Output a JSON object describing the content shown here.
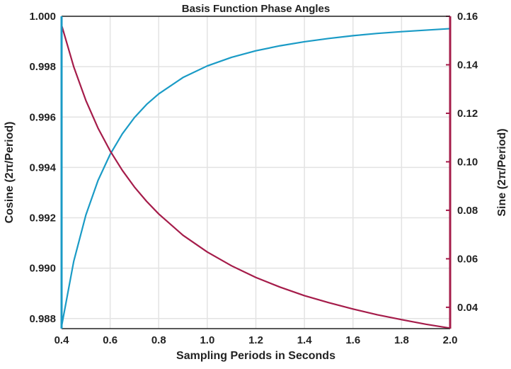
{
  "chart_data": {
    "type": "line",
    "title": "Basis Function Phase Angles",
    "xlabel": "Sampling Periods in Seconds",
    "ylabel_left": "Cosine (2π/Period)",
    "ylabel_right": "Sine (2π/Period)",
    "xlim": [
      0.4,
      2.0
    ],
    "ylim_left": [
      0.9876,
      1.0
    ],
    "ylim_right": [
      0.0312,
      0.16
    ],
    "x_ticks": [
      "0.4",
      "0.6",
      "0.8",
      "1.0",
      "1.2",
      "1.4",
      "1.6",
      "1.8",
      "2.0"
    ],
    "y_ticks_left": [
      "0.988",
      "0.990",
      "0.992",
      "0.994",
      "0.996",
      "0.998",
      "1.000"
    ],
    "y_ticks_right": [
      "0.04",
      "0.06",
      "0.08",
      "0.10",
      "0.12",
      "0.14",
      "0.16"
    ],
    "grid": true,
    "series": [
      {
        "axis": "left",
        "color": "#1a9bc6",
        "x": [
          0.4,
          0.45,
          0.5,
          0.55,
          0.6,
          0.65,
          0.7,
          0.75,
          0.8,
          0.9,
          1.0,
          1.1,
          1.2,
          1.3,
          1.4,
          1.5,
          1.6,
          1.7,
          1.8,
          1.9,
          2.0
        ],
        "values": [
          0.98769,
          0.99027,
          0.99211,
          0.99348,
          0.99452,
          0.99533,
          0.99598,
          0.9965,
          0.99692,
          0.99757,
          0.99803,
          0.99837,
          0.99863,
          0.99883,
          0.99899,
          0.99912,
          0.99923,
          0.99932,
          0.99939,
          0.99945,
          0.99951
        ]
      },
      {
        "axis": "right",
        "color": "#a51c4a",
        "x": [
          0.4,
          0.45,
          0.5,
          0.55,
          0.6,
          0.65,
          0.7,
          0.75,
          0.8,
          0.9,
          1.0,
          1.1,
          1.2,
          1.3,
          1.4,
          1.5,
          1.6,
          1.7,
          1.8,
          1.9,
          2.0
        ],
        "values": [
          0.1564,
          0.1392,
          0.1253,
          0.1139,
          0.1045,
          0.0965,
          0.0896,
          0.0837,
          0.0785,
          0.0697,
          0.0628,
          0.0571,
          0.0523,
          0.0483,
          0.0448,
          0.0419,
          0.0393,
          0.0369,
          0.0349,
          0.033,
          0.0314
        ]
      }
    ]
  }
}
